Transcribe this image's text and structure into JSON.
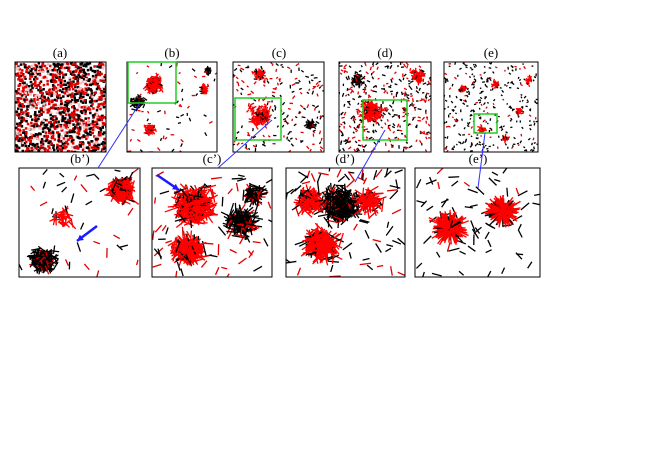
{
  "panels": {
    "top": [
      "(a)",
      "(b)",
      "(c)",
      "(d)",
      "(e)"
    ],
    "bottom": [
      "(b’)",
      "(c’)",
      "(d’)",
      "(e’)"
    ]
  }
}
